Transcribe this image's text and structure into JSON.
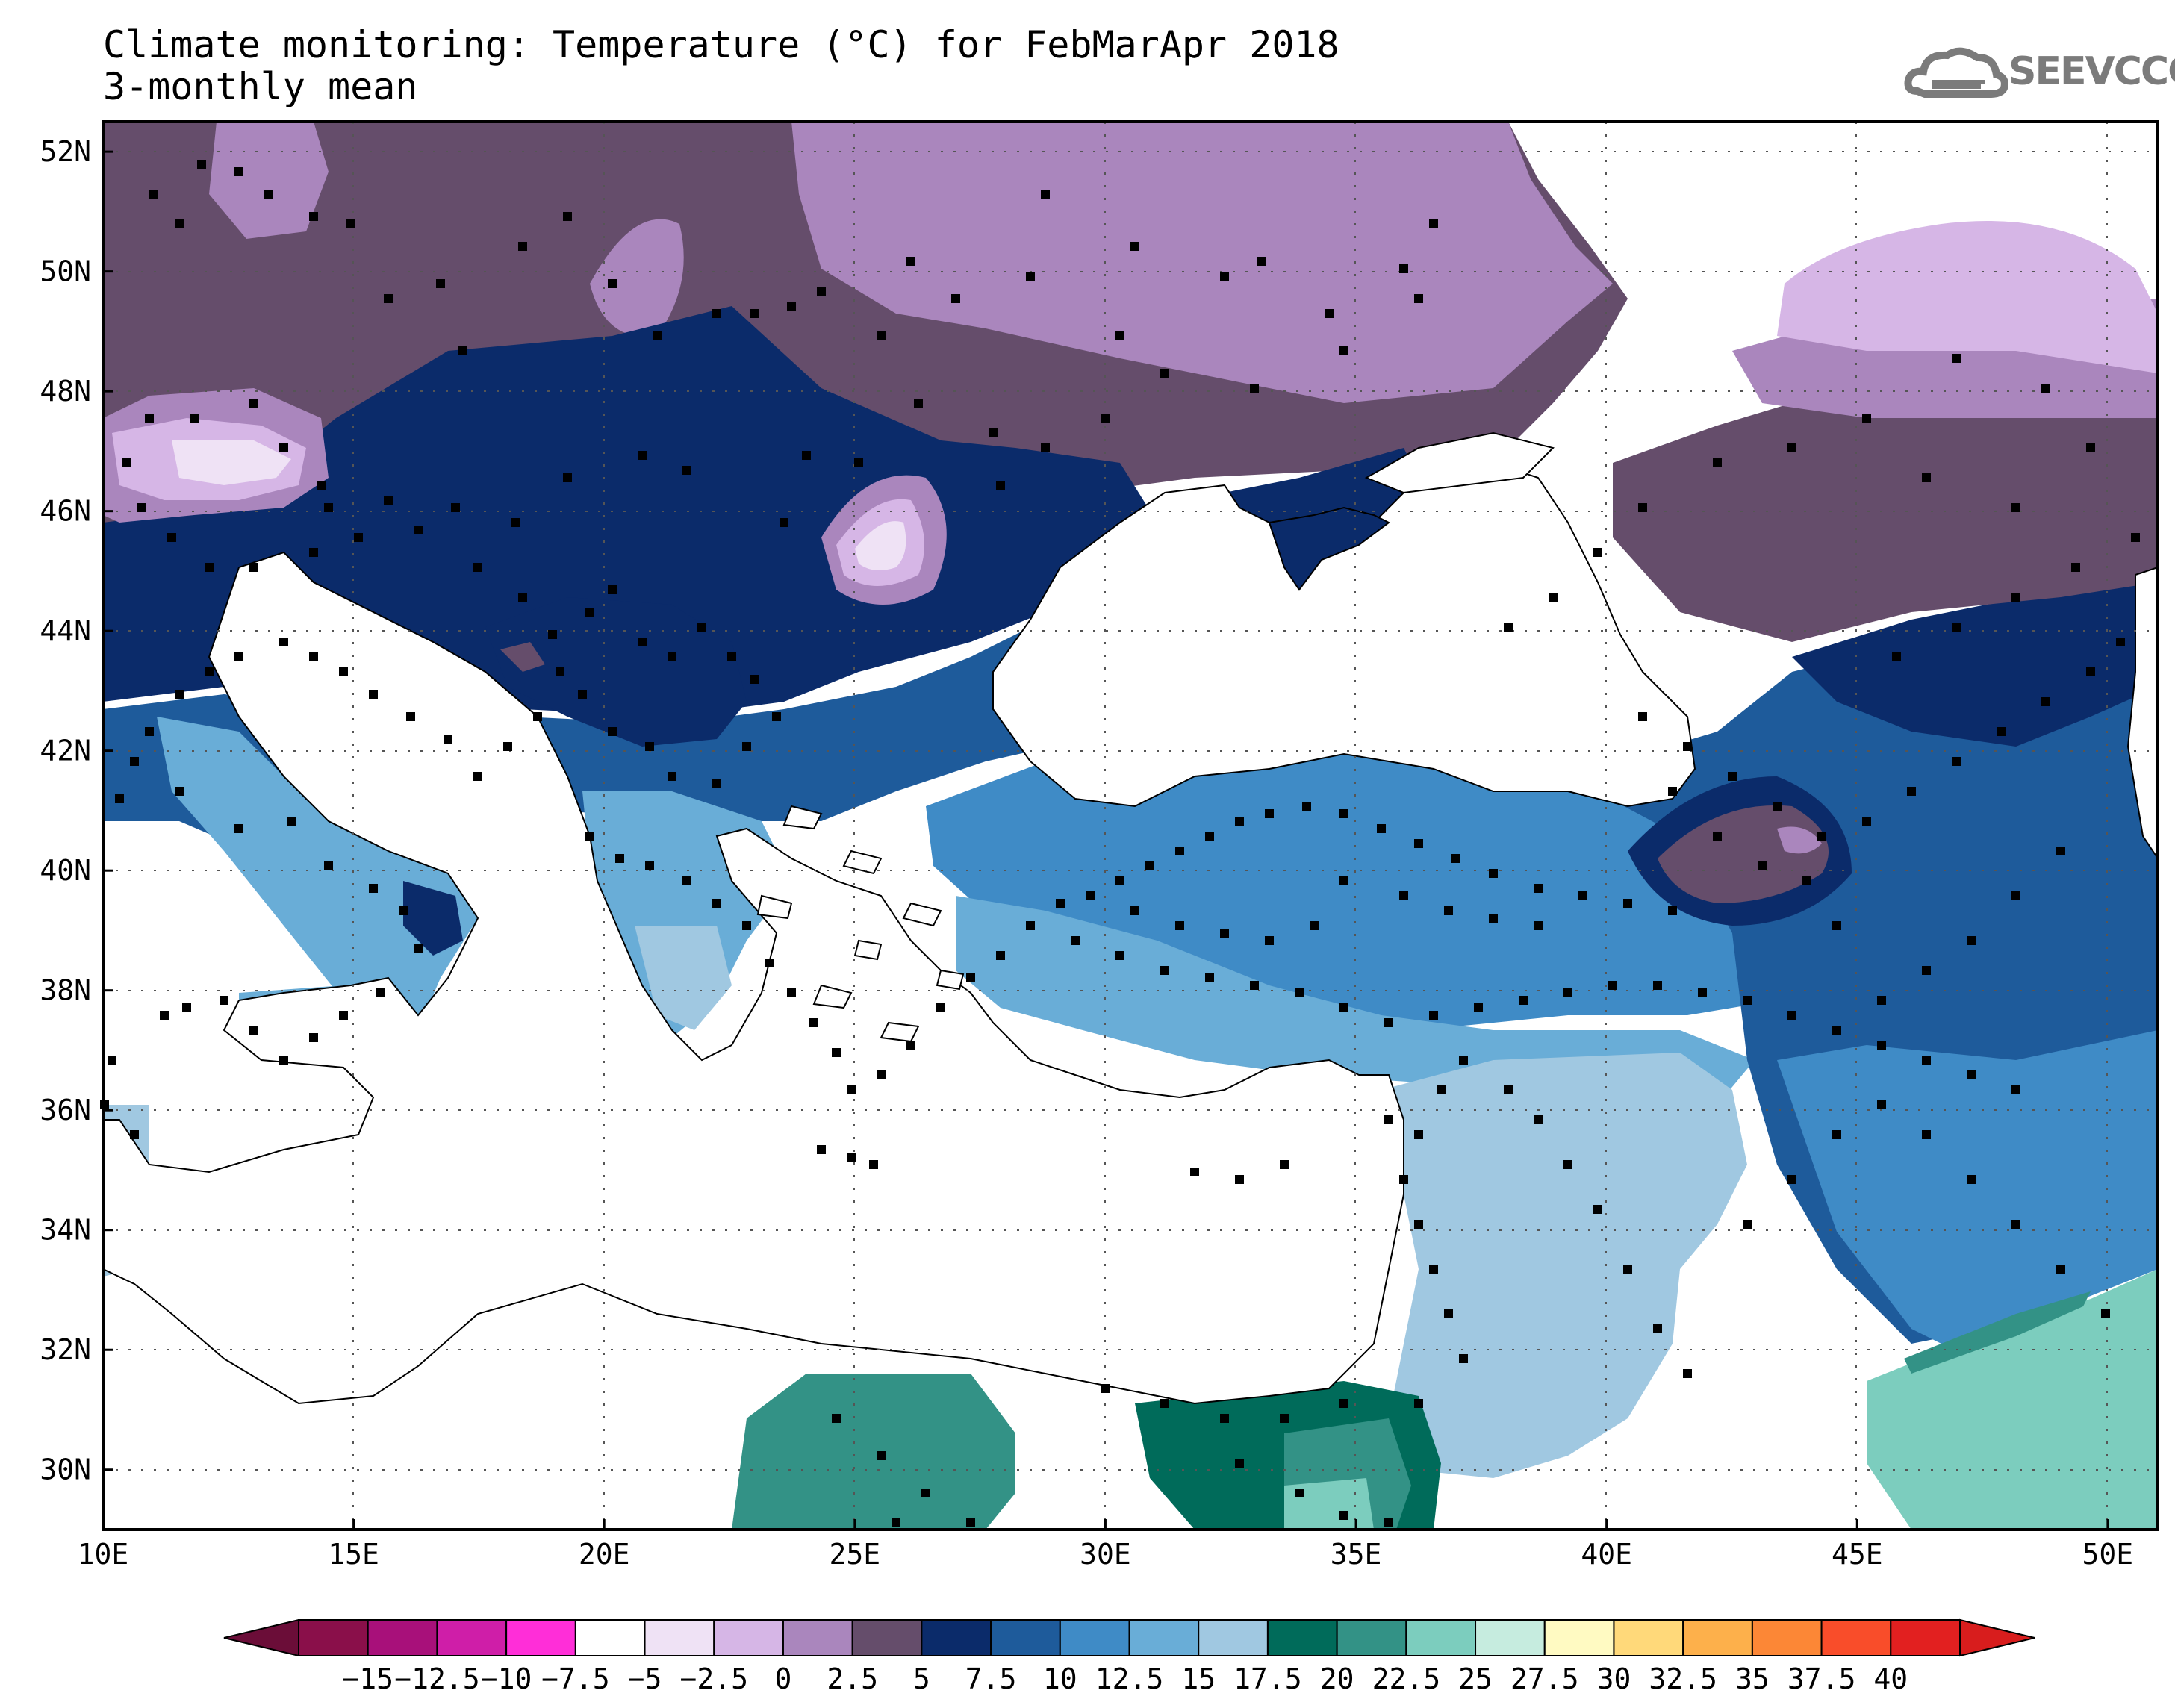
{
  "title": {
    "line1": "Climate monitoring: Temperature (°C) for FebMarApr 2018",
    "line2": "3-monthly mean"
  },
  "logo": {
    "text": "SEEVCCC",
    "icon": "cloud-icon"
  },
  "axes": {
    "lat_labels": [
      "52N",
      "50N",
      "48N",
      "46N",
      "44N",
      "42N",
      "40N",
      "38N",
      "36N",
      "34N",
      "32N",
      "30N"
    ],
    "lat_values": [
      52,
      50,
      48,
      46,
      44,
      42,
      40,
      38,
      36,
      34,
      32,
      30
    ],
    "lon_labels": [
      "10E",
      "15E",
      "20E",
      "25E",
      "30E",
      "35E",
      "40E",
      "45E",
      "50E"
    ],
    "lon_values": [
      10,
      15,
      20,
      25,
      30,
      35,
      40,
      45,
      50
    ],
    "lon_range": [
      10,
      51
    ],
    "lat_range": [
      29,
      52.5
    ]
  },
  "colorbar": {
    "labels": [
      "−15",
      "−12.5",
      "−10",
      "−7.5",
      "−5",
      "−2.5",
      "0",
      "2.5",
      "5",
      "7.5",
      "10",
      "12.5",
      "15",
      "17.5",
      "20",
      "22.5",
      "25",
      "27.5",
      "30",
      "32.5",
      "35",
      "37.5",
      "40"
    ],
    "colors": [
      "#8a0f4a",
      "#a8107a",
      "#cf1ea8",
      "#ff2ed8",
      "#ffffff",
      "#efe2f5",
      "#d6b6e6",
      "#aa86bd",
      "#654d6b",
      "#0b2b6a",
      "#1e5b9b",
      "#3f8bc6",
      "#69add7",
      "#a0c8e1",
      "#006b5a",
      "#339286",
      "#7ccdbe",
      "#c6ecdf",
      "#fffac2",
      "#ffd97a",
      "#fdb04b",
      "#fc8736",
      "#f94d2a",
      "#e22020"
    ],
    "min_arrow_color": "#6b0d38",
    "max_arrow_color": "#d81d1d"
  },
  "map_colors": {
    "sea": "#ffffff",
    "c_m5": "#efe2f5",
    "c_m2": "#d6b6e6",
    "c_0": "#aa86bd",
    "c_2": "#654d6b",
    "c_5": "#0b2b6a",
    "c_7": "#1e5b9b",
    "c_10": "#3f8bc6",
    "c_12": "#69add7",
    "c_15": "#a0c8e1",
    "c_17": "#006b5a",
    "c_20": "#339286",
    "c_22": "#7ccdbe"
  }
}
